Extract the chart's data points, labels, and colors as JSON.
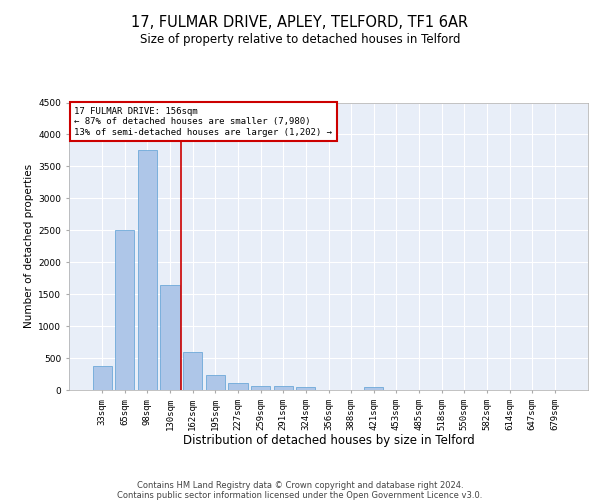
{
  "title_line1": "17, FULMAR DRIVE, APLEY, TELFORD, TF1 6AR",
  "title_line2": "Size of property relative to detached houses in Telford",
  "xlabel": "Distribution of detached houses by size in Telford",
  "ylabel": "Number of detached properties",
  "categories": [
    "33sqm",
    "65sqm",
    "98sqm",
    "130sqm",
    "162sqm",
    "195sqm",
    "227sqm",
    "259sqm",
    "291sqm",
    "324sqm",
    "356sqm",
    "388sqm",
    "421sqm",
    "453sqm",
    "485sqm",
    "518sqm",
    "550sqm",
    "582sqm",
    "614sqm",
    "647sqm",
    "679sqm"
  ],
  "values": [
    380,
    2500,
    3750,
    1650,
    590,
    230,
    110,
    60,
    55,
    40,
    0,
    0,
    50,
    0,
    0,
    0,
    0,
    0,
    0,
    0,
    0
  ],
  "bar_color": "#aec6e8",
  "bar_edge_color": "#5a9fd4",
  "property_label": "17 FULMAR DRIVE: 156sqm",
  "annotation_line1": "← 87% of detached houses are smaller (7,980)",
  "annotation_line2": "13% of semi-detached houses are larger (1,202) →",
  "vline_color": "#cc0000",
  "vline_position": 3.5,
  "annotation_box_color": "#cc0000",
  "ylim": [
    0,
    4500
  ],
  "yticks": [
    0,
    500,
    1000,
    1500,
    2000,
    2500,
    3000,
    3500,
    4000,
    4500
  ],
  "footer_line1": "Contains HM Land Registry data © Crown copyright and database right 2024.",
  "footer_line2": "Contains public sector information licensed under the Open Government Licence v3.0.",
  "background_color": "#e8eef8",
  "grid_color": "#ffffff",
  "title_fontsize": 10.5,
  "subtitle_fontsize": 8.5,
  "axis_label_fontsize": 7.5,
  "tick_fontsize": 6.5,
  "footer_fontsize": 6.0
}
